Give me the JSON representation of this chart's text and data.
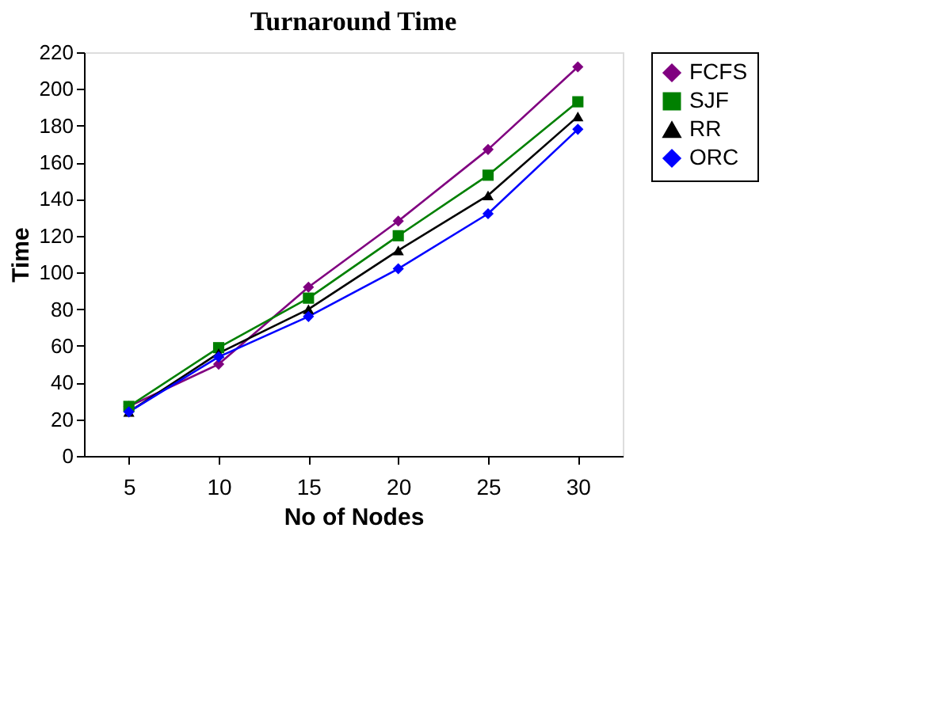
{
  "chart_data": {
    "type": "line",
    "title": "Turnaround Time",
    "xlabel": "No of Nodes",
    "ylabel": "Time",
    "categories": [
      "5",
      "10",
      "15",
      "20",
      "25",
      "30"
    ],
    "series": [
      {
        "name": "FCFS",
        "color": "#800080",
        "marker": "diamond",
        "values": [
          27,
          50,
          92,
          128,
          167,
          212
        ]
      },
      {
        "name": "SJF",
        "color": "#008000",
        "marker": "square",
        "values": [
          27,
          59,
          86,
          120,
          153,
          193
        ]
      },
      {
        "name": "RR",
        "color": "#000000",
        "marker": "triangle",
        "values": [
          24,
          56,
          80,
          112,
          142,
          185
        ]
      },
      {
        "name": "ORC",
        "color": "#0000ff",
        "marker": "diamond",
        "values": [
          24,
          54,
          76,
          102,
          132,
          178
        ]
      }
    ],
    "ylim": [
      0,
      220
    ],
    "yticks": [
      0,
      20,
      40,
      60,
      80,
      100,
      120,
      140,
      160,
      180,
      200,
      220
    ],
    "grid": false,
    "legend": "right"
  }
}
